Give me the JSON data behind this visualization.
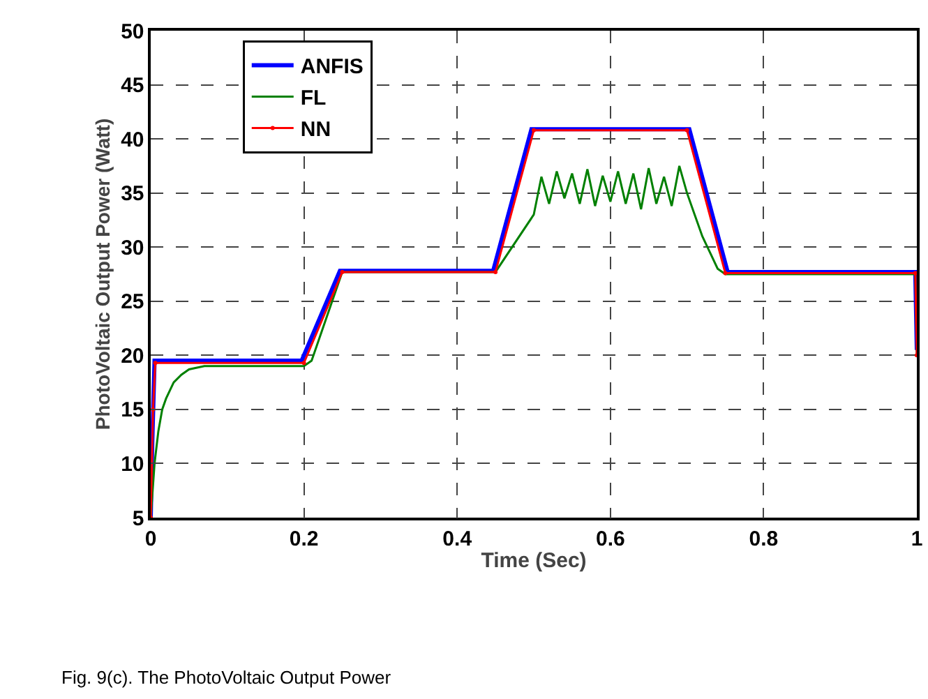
{
  "chart_data": {
    "type": "line",
    "xlabel": "Time (Sec)",
    "ylabel": "PhotoVoltaic Output Power (Watt)",
    "annotations": [
      "Fig. 9(c). The PhotoVoltaic Output Power"
    ],
    "xlim": [
      0,
      1
    ],
    "ylim": [
      5,
      50
    ],
    "xticks": [
      0,
      0.2,
      0.4,
      0.6,
      0.8,
      1
    ],
    "yticks": [
      5,
      10,
      15,
      20,
      25,
      30,
      35,
      40,
      45,
      50
    ],
    "grid": true,
    "legend": "top left",
    "line_style": "solid",
    "series": [
      {
        "name": "ANFIS",
        "color": "#0000ff",
        "marker": "none",
        "x": [
          0,
          0.002,
          0.005,
          0.197,
          0.247,
          0.447,
          0.497,
          0.703,
          0.753,
          0.998,
          1
        ],
        "values": [
          5,
          12,
          19.5,
          19.5,
          27.8,
          27.8,
          40.9,
          40.9,
          27.7,
          27.7,
          20.5
        ]
      },
      {
        "name": "FL",
        "color": "#008000",
        "marker": "none",
        "x": [
          0,
          0.005,
          0.01,
          0.015,
          0.02,
          0.03,
          0.04,
          0.05,
          0.07,
          0.1,
          0.2,
          0.21,
          0.25,
          0.45,
          0.5,
          0.51,
          0.52,
          0.53,
          0.54,
          0.55,
          0.56,
          0.57,
          0.58,
          0.59,
          0.6,
          0.61,
          0.62,
          0.63,
          0.64,
          0.65,
          0.66,
          0.67,
          0.68,
          0.69,
          0.7,
          0.71,
          0.72,
          0.73,
          0.74,
          0.75,
          0.998,
          1
        ],
        "values": [
          5,
          10,
          13,
          15,
          16,
          17.5,
          18.2,
          18.7,
          19,
          19,
          19,
          19.5,
          27.7,
          27.7,
          33,
          36.5,
          34,
          37,
          34.5,
          36.8,
          34,
          37.2,
          33.8,
          36.6,
          34.2,
          37,
          34,
          36.8,
          33.5,
          37.3,
          34,
          36.5,
          33.8,
          37.5,
          35,
          33,
          31,
          29.5,
          28,
          27.5,
          27.5,
          20
        ]
      },
      {
        "name": "NN",
        "color": "#ff0000",
        "marker": "circle",
        "x": [
          0,
          0.003,
          0.006,
          0.2,
          0.25,
          0.45,
          0.5,
          0.7,
          0.75,
          0.998,
          1
        ],
        "values": [
          5,
          15,
          19.3,
          19.3,
          27.7,
          27.7,
          40.8,
          40.8,
          27.6,
          27.6,
          20
        ]
      }
    ]
  }
}
